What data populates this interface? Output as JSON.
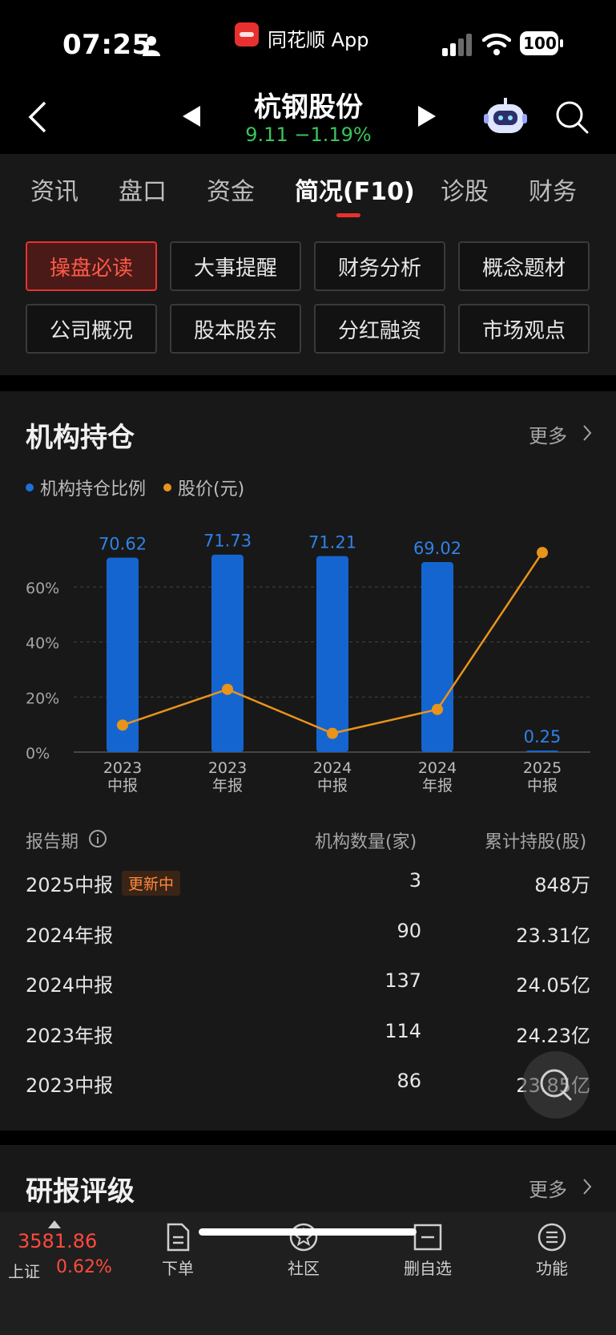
{
  "status_bar": {
    "time": "07:25",
    "app_name": "同花顺 App",
    "battery": "100"
  },
  "nav": {
    "stock_name": "杭钢股份",
    "price": "9.11",
    "change_pct": "−1.19%"
  },
  "tabs": [
    "资讯",
    "盘口",
    "资金",
    "简况(F10)",
    "诊股",
    "财务"
  ],
  "active_tab": "简况(F10)",
  "chips": [
    "操盘必读",
    "大事提醒",
    "财务分析",
    "概念题材",
    "公司概况",
    "股本股东",
    "分红融资",
    "市场观点"
  ],
  "active_chip": "操盘必读",
  "section": {
    "title": "机构持仓",
    "more": "更多",
    "legend": [
      "机构持仓比例",
      "股价(元)"
    ],
    "legend_colors": [
      "#1f6fd6",
      "#e8941a"
    ]
  },
  "chart_data": {
    "type": "bar",
    "categories": [
      "2023\n中报",
      "2023\n年报",
      "2024\n中报",
      "2024\n年报",
      "2025\n中报"
    ],
    "category_lines": [
      [
        "2023",
        "中报"
      ],
      [
        "2023",
        "年报"
      ],
      [
        "2024",
        "中报"
      ],
      [
        "2024",
        "年报"
      ],
      [
        "2025",
        "中报"
      ]
    ],
    "series": [
      {
        "name": "机构持仓比例",
        "type": "bar",
        "values": [
          70.62,
          71.73,
          71.21,
          69.02,
          0.25
        ],
        "labels": [
          "70.62",
          "71.73",
          "71.21",
          "69.02",
          "0.25"
        ],
        "color": "#1565d0"
      },
      {
        "name": "股价(元)",
        "type": "line",
        "values": [
          9.8,
          22.8,
          6.8,
          15.5,
          72.5
        ],
        "color": "#e8941a"
      }
    ],
    "y_ticks": [
      "0%",
      "20%",
      "40%",
      "60%"
    ],
    "ylim": [
      0,
      75
    ],
    "grid": true
  },
  "table": {
    "headers": [
      "报告期",
      "机构数量(家)",
      "累计持股(股)"
    ],
    "rows": [
      {
        "period": "2025中报",
        "badge": "更新中",
        "count": "3",
        "shares": "848万"
      },
      {
        "period": "2024年报",
        "badge": "",
        "count": "90",
        "shares": "23.31亿"
      },
      {
        "period": "2024中报",
        "badge": "",
        "count": "137",
        "shares": "24.05亿"
      },
      {
        "period": "2023年报",
        "badge": "",
        "count": "114",
        "shares": "24.23亿"
      },
      {
        "period": "2023中报",
        "badge": "",
        "count": "86",
        "shares": "23.85亿"
      }
    ]
  },
  "section2": {
    "title": "研报评级",
    "more": "更多"
  },
  "bottom_bar": {
    "index_value": "3581.86",
    "index_name": "上证",
    "index_pct": "0.62%",
    "items": [
      "下单",
      "社区",
      "删自选",
      "功能"
    ]
  }
}
